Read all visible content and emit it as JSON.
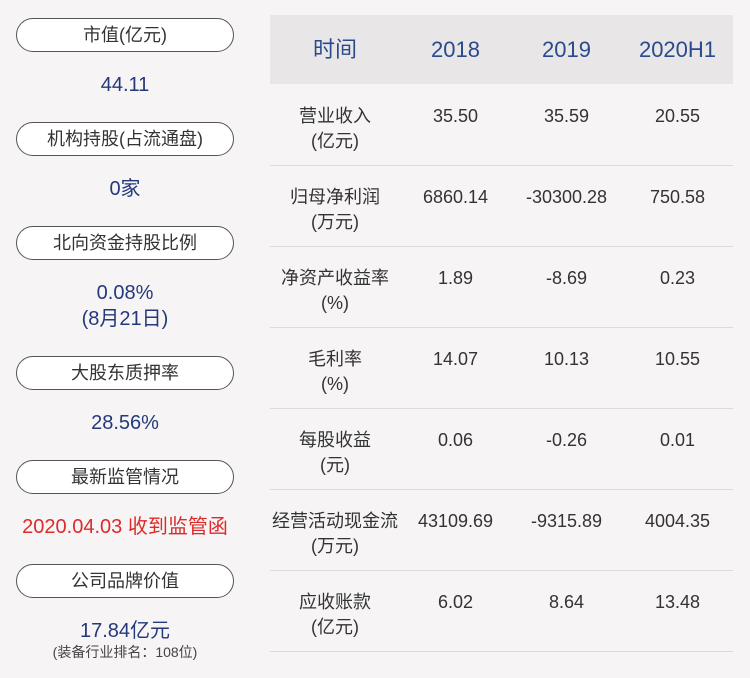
{
  "left_panel": [
    {
      "label": "市值(亿元)",
      "values": [
        "44.11"
      ]
    },
    {
      "label": "机构持股(占流通盘)",
      "values": [
        "0家"
      ]
    },
    {
      "label": "北向资金持股比例",
      "values": [
        "0.08%",
        "(8月21日)"
      ]
    },
    {
      "label": "大股东质押率",
      "values": [
        "28.56%"
      ]
    },
    {
      "label": "最新监管情况",
      "values": [
        "2020.04.03 收到监管函"
      ]
    },
    {
      "label": "公司品牌价值",
      "values": [
        "17.84亿元",
        "(装备行业排名：108位)"
      ]
    }
  ],
  "table": {
    "header": [
      "时间",
      "2018",
      "2019",
      "2020H1"
    ],
    "rows": [
      {
        "label": [
          "营业收入",
          "(亿元)"
        ],
        "values": [
          "35.50",
          "35.59",
          "20.55"
        ]
      },
      {
        "label": [
          "归母净利润",
          "(万元)"
        ],
        "values": [
          "6860.14",
          "-30300.28",
          "750.58"
        ]
      },
      {
        "label": [
          "净资产收益率",
          "(%)"
        ],
        "values": [
          "1.89",
          "-8.69",
          "0.23"
        ]
      },
      {
        "label": [
          "毛利率",
          "(%)"
        ],
        "values": [
          "14.07",
          "10.13",
          "10.55"
        ]
      },
      {
        "label": [
          "每股收益",
          "(元)"
        ],
        "values": [
          "0.06",
          "-0.26",
          "0.01"
        ]
      },
      {
        "label": [
          "经营活动现金流",
          "(万元)"
        ],
        "values": [
          "43109.69",
          "-9315.89",
          "4004.35"
        ]
      },
      {
        "label": [
          "应收账款",
          "(亿元)"
        ],
        "values": [
          "6.02",
          "8.64",
          "13.48"
        ]
      }
    ]
  }
}
